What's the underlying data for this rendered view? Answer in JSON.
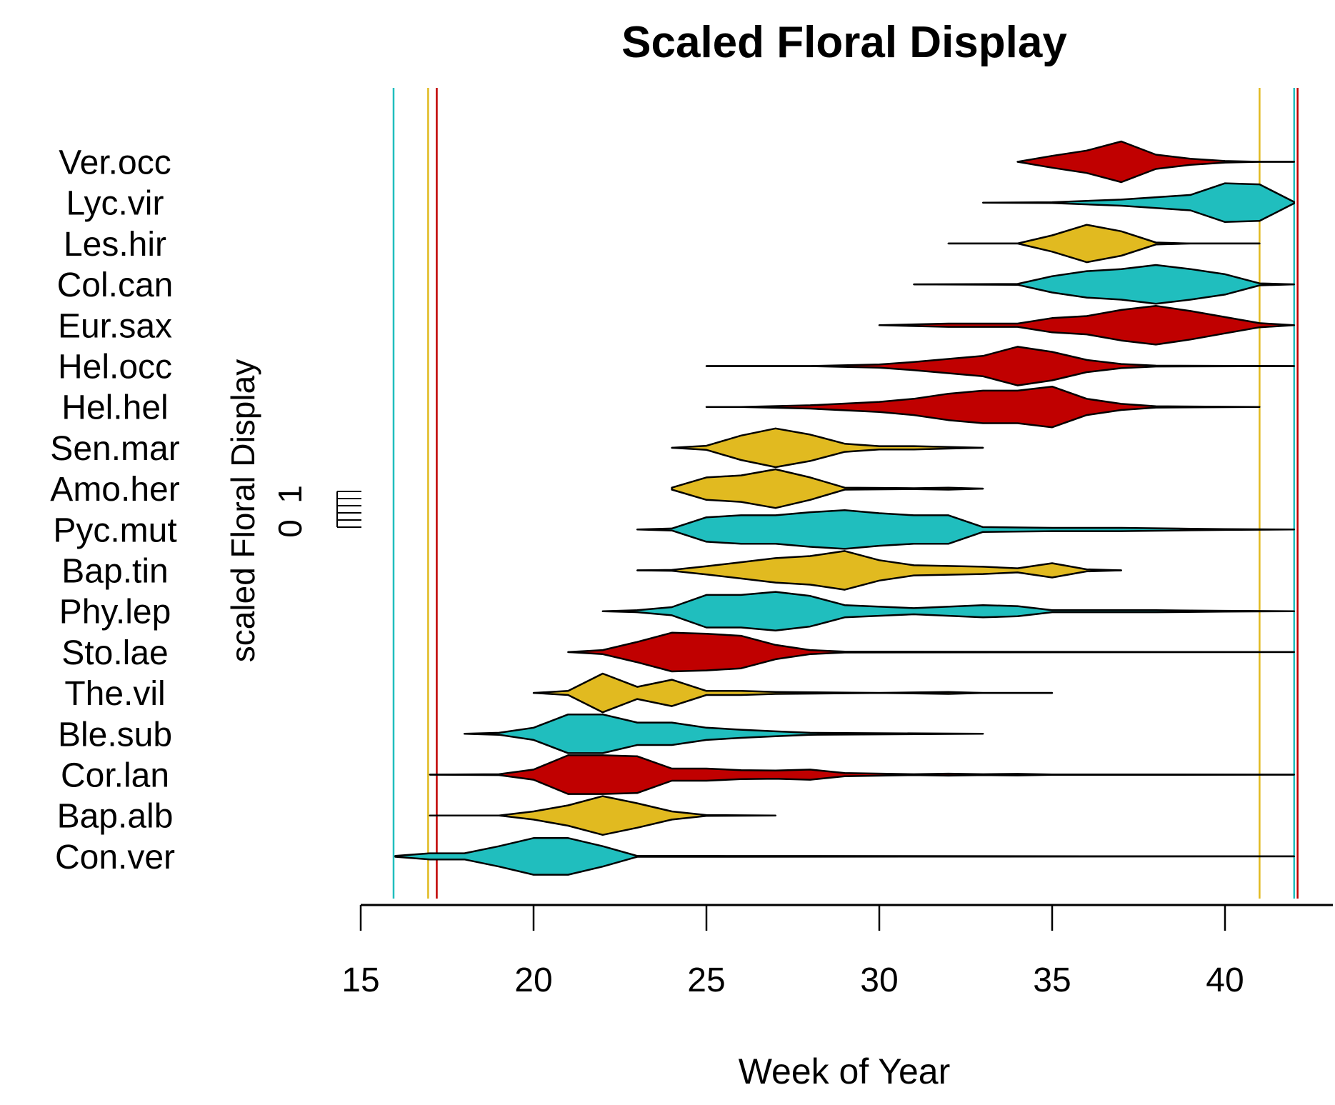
{
  "chart_data": {
    "type": "violin",
    "title": "Scaled Floral Display",
    "xlabel": "Week of Year",
    "ylabel": "scaled Floral Display",
    "scale_labels": [
      "0",
      "1"
    ],
    "xlim": [
      15,
      42.5
    ],
    "xticks": [
      15,
      20,
      25,
      30,
      35,
      40
    ],
    "colors": {
      "red": "#C00000",
      "cyan": "#20BEBE",
      "gold": "#E1BA20"
    },
    "reference_lines": [
      {
        "week": 15.95,
        "color": "#20BEBE"
      },
      {
        "week": 16.95,
        "color": "#E1BA20"
      },
      {
        "week": 17.2,
        "color": "#C00000"
      },
      {
        "week": 41.0,
        "color": "#E1BA20"
      },
      {
        "week": 42.0,
        "color": "#20BEBE"
      },
      {
        "week": 42.1,
        "color": "#C00000"
      }
    ],
    "series": [
      {
        "name": "Ver.occ",
        "color": "#C00000",
        "points": [
          [
            34,
            0
          ],
          [
            35,
            0.29
          ],
          [
            36,
            0.55
          ],
          [
            37,
            1.0
          ],
          [
            38,
            0.35
          ],
          [
            39,
            0.15
          ],
          [
            40,
            0.04
          ],
          [
            41,
            0
          ],
          [
            42,
            0
          ]
        ]
      },
      {
        "name": "Lyc.vir",
        "color": "#20BEBE",
        "points": [
          [
            33,
            0
          ],
          [
            35,
            0.02
          ],
          [
            37,
            0.15
          ],
          [
            39,
            0.38
          ],
          [
            40,
            0.95
          ],
          [
            41,
            0.9
          ],
          [
            42,
            0.03
          ]
        ]
      },
      {
        "name": "Les.hir",
        "color": "#E1BA20",
        "points": [
          [
            32,
            0
          ],
          [
            34,
            0
          ],
          [
            35,
            0.4
          ],
          [
            36,
            0.92
          ],
          [
            37,
            0.6
          ],
          [
            38,
            0.05
          ],
          [
            39,
            0
          ],
          [
            41,
            0
          ]
        ]
      },
      {
        "name": "Col.can",
        "color": "#20BEBE",
        "points": [
          [
            31,
            0
          ],
          [
            34,
            0.02
          ],
          [
            35,
            0.4
          ],
          [
            36,
            0.65
          ],
          [
            37,
            0.75
          ],
          [
            38,
            0.95
          ],
          [
            39,
            0.75
          ],
          [
            40,
            0.5
          ],
          [
            41,
            0.05
          ],
          [
            42,
            0
          ]
        ]
      },
      {
        "name": "Eur.sax",
        "color": "#C00000",
        "points": [
          [
            30,
            0
          ],
          [
            32,
            0.08
          ],
          [
            34,
            0.08
          ],
          [
            35,
            0.35
          ],
          [
            36,
            0.45
          ],
          [
            37,
            0.75
          ],
          [
            38,
            0.95
          ],
          [
            39,
            0.7
          ],
          [
            40,
            0.4
          ],
          [
            41,
            0.1
          ],
          [
            42,
            0
          ]
        ]
      },
      {
        "name": "Hel.occ",
        "color": "#C00000",
        "points": [
          [
            25,
            0
          ],
          [
            28,
            0
          ],
          [
            30,
            0.08
          ],
          [
            31,
            0.2
          ],
          [
            32,
            0.35
          ],
          [
            33,
            0.5
          ],
          [
            34,
            0.95
          ],
          [
            35,
            0.7
          ],
          [
            36,
            0.3
          ],
          [
            37,
            0.1
          ],
          [
            38,
            0.02
          ],
          [
            42,
            0
          ]
        ]
      },
      {
        "name": "Hel.hel",
        "color": "#C00000",
        "points": [
          [
            25,
            0
          ],
          [
            26,
            0
          ],
          [
            28,
            0.08
          ],
          [
            30,
            0.25
          ],
          [
            31,
            0.4
          ],
          [
            32,
            0.65
          ],
          [
            33,
            0.8
          ],
          [
            34,
            0.8
          ],
          [
            35,
            1.0
          ],
          [
            36,
            0.4
          ],
          [
            37,
            0.15
          ],
          [
            38,
            0.03
          ],
          [
            41,
            0
          ]
        ]
      },
      {
        "name": "Sen.mar",
        "color": "#E1BA20",
        "points": [
          [
            24,
            0
          ],
          [
            25,
            0.1
          ],
          [
            26,
            0.6
          ],
          [
            27,
            0.95
          ],
          [
            28,
            0.65
          ],
          [
            29,
            0.2
          ],
          [
            30,
            0.08
          ],
          [
            31,
            0.08
          ],
          [
            32,
            0.04
          ],
          [
            33,
            0
          ]
        ]
      },
      {
        "name": "Amo.her",
        "color": "#E1BA20",
        "points": [
          [
            24,
            0.05
          ],
          [
            25,
            0.55
          ],
          [
            26,
            0.65
          ],
          [
            27,
            0.95
          ],
          [
            28,
            0.55
          ],
          [
            29,
            0.05
          ],
          [
            31,
            0.02
          ],
          [
            32,
            0.05
          ],
          [
            33,
            0
          ]
        ]
      },
      {
        "name": "Pyc.mut",
        "color": "#20BEBE",
        "points": [
          [
            23,
            0
          ],
          [
            24,
            0.05
          ],
          [
            25,
            0.6
          ],
          [
            26,
            0.7
          ],
          [
            27,
            0.7
          ],
          [
            28,
            0.85
          ],
          [
            29,
            0.95
          ],
          [
            30,
            0.8
          ],
          [
            31,
            0.7
          ],
          [
            32,
            0.7
          ],
          [
            33,
            0.12
          ],
          [
            35,
            0.08
          ],
          [
            37,
            0.08
          ],
          [
            39,
            0.04
          ],
          [
            40,
            0.02
          ],
          [
            42,
            0
          ]
        ]
      },
      {
        "name": "Bap.tin",
        "color": "#E1BA20",
        "points": [
          [
            23,
            0
          ],
          [
            24,
            0.02
          ],
          [
            25,
            0.2
          ],
          [
            26,
            0.4
          ],
          [
            27,
            0.6
          ],
          [
            28,
            0.7
          ],
          [
            29,
            0.95
          ],
          [
            30,
            0.5
          ],
          [
            31,
            0.25
          ],
          [
            33,
            0.18
          ],
          [
            34,
            0.1
          ],
          [
            35,
            0.35
          ],
          [
            36,
            0.05
          ],
          [
            37,
            0
          ]
        ]
      },
      {
        "name": "Phy.lep",
        "color": "#20BEBE",
        "points": [
          [
            22,
            0
          ],
          [
            23,
            0.05
          ],
          [
            24,
            0.2
          ],
          [
            25,
            0.8
          ],
          [
            26,
            0.8
          ],
          [
            27,
            0.95
          ],
          [
            28,
            0.75
          ],
          [
            29,
            0.3
          ],
          [
            31,
            0.15
          ],
          [
            33,
            0.3
          ],
          [
            34,
            0.25
          ],
          [
            35,
            0.05
          ],
          [
            38,
            0.05
          ],
          [
            40,
            0.02
          ],
          [
            42,
            0
          ]
        ]
      },
      {
        "name": "Sto.lae",
        "color": "#C00000",
        "points": [
          [
            21,
            0
          ],
          [
            22,
            0.1
          ],
          [
            23,
            0.5
          ],
          [
            24,
            0.95
          ],
          [
            25,
            0.9
          ],
          [
            26,
            0.8
          ],
          [
            27,
            0.35
          ],
          [
            28,
            0.1
          ],
          [
            29,
            0.02
          ],
          [
            42,
            0
          ]
        ]
      },
      {
        "name": "The.vil",
        "color": "#E1BA20",
        "points": [
          [
            20,
            0
          ],
          [
            21,
            0.1
          ],
          [
            22,
            0.95
          ],
          [
            23,
            0.3
          ],
          [
            24,
            0.65
          ],
          [
            25,
            0.1
          ],
          [
            26,
            0.1
          ],
          [
            27,
            0.05
          ],
          [
            30,
            0
          ],
          [
            32,
            0.05
          ],
          [
            33,
            0
          ],
          [
            35,
            0
          ]
        ]
      },
      {
        "name": "Ble.sub",
        "color": "#20BEBE",
        "points": [
          [
            18,
            0
          ],
          [
            19,
            0.05
          ],
          [
            20,
            0.3
          ],
          [
            21,
            0.95
          ],
          [
            22,
            0.95
          ],
          [
            23,
            0.55
          ],
          [
            24,
            0.55
          ],
          [
            25,
            0.3
          ],
          [
            26,
            0.2
          ],
          [
            27,
            0.12
          ],
          [
            28,
            0.05
          ],
          [
            33,
            0
          ]
        ]
      },
      {
        "name": "Cor.lan",
        "color": "#C00000",
        "points": [
          [
            17,
            0
          ],
          [
            19,
            0.02
          ],
          [
            20,
            0.25
          ],
          [
            21,
            0.95
          ],
          [
            22,
            0.95
          ],
          [
            23,
            0.9
          ],
          [
            24,
            0.3
          ],
          [
            25,
            0.3
          ],
          [
            26,
            0.22
          ],
          [
            27,
            0.2
          ],
          [
            28,
            0.25
          ],
          [
            29,
            0.08
          ],
          [
            31,
            0.02
          ],
          [
            32,
            0.05
          ],
          [
            33,
            0.02
          ],
          [
            34,
            0.04
          ],
          [
            35,
            0.01
          ],
          [
            37,
            0.01
          ],
          [
            42,
            0
          ]
        ]
      },
      {
        "name": "Bap.alb",
        "color": "#E1BA20",
        "points": [
          [
            17,
            0
          ],
          [
            19,
            0
          ],
          [
            20,
            0.2
          ],
          [
            21,
            0.5
          ],
          [
            22,
            0.95
          ],
          [
            23,
            0.6
          ],
          [
            24,
            0.2
          ],
          [
            25,
            0.02
          ],
          [
            27,
            0
          ]
        ]
      },
      {
        "name": "Con.ver",
        "color": "#20BEBE",
        "points": [
          [
            16,
            0.02
          ],
          [
            17,
            0.15
          ],
          [
            18,
            0.15
          ],
          [
            19,
            0.5
          ],
          [
            20,
            0.9
          ],
          [
            21,
            0.9
          ],
          [
            22,
            0.5
          ],
          [
            23,
            0.02
          ],
          [
            25,
            0.02
          ],
          [
            42,
            0
          ]
        ]
      }
    ]
  }
}
